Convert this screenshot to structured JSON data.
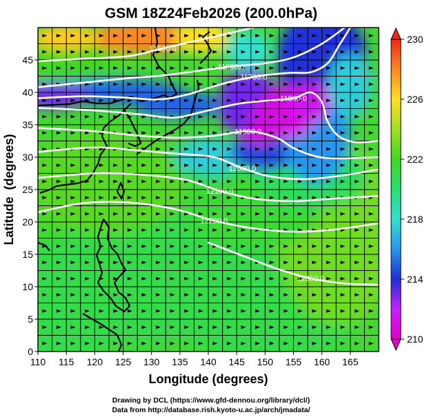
{
  "title": "GSM 18Z24Feb2026 (200.0hPa)",
  "credit_line1": "Drawing by DCL (https://www.gfd-dennou.org/library/dcl/)",
  "credit_line2": "Data from http://database.rish.kyoto-u.ac.jp/arch/jmadata/",
  "chart_data": {
    "type": "heatmap",
    "title": "GSM 18Z24Feb2026 (200.0hPa)",
    "xlabel": "Longitude (degrees)",
    "ylabel": "Latitude  (degrees)",
    "xlim": [
      110,
      170
    ],
    "ylim": [
      0,
      50
    ],
    "x_ticks": [
      110,
      115,
      120,
      125,
      130,
      135,
      140,
      145,
      150,
      155,
      160,
      165
    ],
    "y_ticks": [
      0,
      5,
      10,
      15,
      20,
      25,
      30,
      35,
      40,
      45
    ],
    "grid": true,
    "colorbar": {
      "min": 210,
      "max": 230,
      "tick_values": [
        210,
        214,
        218,
        222,
        226,
        230
      ],
      "stops": [
        {
          "value": 210,
          "color": "#e600c8"
        },
        {
          "value": 212,
          "color": "#c820ff"
        },
        {
          "value": 214,
          "color": "#2030d8"
        },
        {
          "value": 216,
          "color": "#2896f0"
        },
        {
          "value": 218,
          "color": "#30e0d0"
        },
        {
          "value": 220,
          "color": "#28e070"
        },
        {
          "value": 222,
          "color": "#40d820"
        },
        {
          "value": 224,
          "color": "#a0e020"
        },
        {
          "value": 226,
          "color": "#ffe020"
        },
        {
          "value": 228,
          "color": "#ff8820"
        },
        {
          "value": 230,
          "color": "#f02818"
        }
      ]
    },
    "contours": [
      {
        "label": "11500.0",
        "points": [
          [
            110,
            44.8
          ],
          [
            118,
            45.2
          ],
          [
            126,
            45.6
          ],
          [
            132,
            46.8
          ],
          [
            138,
            48.0
          ],
          [
            144,
            49.2
          ],
          [
            148,
            50
          ]
        ]
      },
      {
        "label": "11600.0",
        "points": [
          [
            110,
            40.8
          ],
          [
            118,
            41.5
          ],
          [
            126,
            42.2
          ],
          [
            132,
            42.6
          ],
          [
            138,
            43.3
          ],
          [
            144,
            44.0
          ],
          [
            150,
            44.5
          ],
          [
            155,
            45.4
          ],
          [
            160,
            47.5
          ],
          [
            164,
            50
          ]
        ]
      },
      {
        "label": "11700.0",
        "points": [
          [
            110,
            39.1
          ],
          [
            118,
            39.4
          ],
          [
            125,
            39.2
          ],
          [
            131,
            38.9
          ],
          [
            136,
            39.6
          ],
          [
            142,
            41.2
          ],
          [
            148,
            42.4
          ],
          [
            154,
            43.0
          ],
          [
            158,
            43.1
          ],
          [
            161,
            44.5
          ],
          [
            163,
            47.2
          ],
          [
            165,
            50
          ]
        ]
      },
      {
        "label": "11800.0",
        "points": [
          [
            110,
            37.6
          ],
          [
            120,
            37.2
          ],
          [
            128,
            36.6
          ],
          [
            134,
            36.1
          ],
          [
            139,
            37.0
          ],
          [
            145,
            38.2
          ],
          [
            150,
            38.7
          ],
          [
            155,
            39.1
          ],
          [
            158,
            40.0
          ],
          [
            160,
            38.5
          ],
          [
            161,
            35.5
          ],
          [
            163,
            33.2
          ],
          [
            166,
            32.3
          ],
          [
            170,
            32.5
          ]
        ]
      },
      {
        "label": "11900.0",
        "points": [
          [
            110,
            34.5
          ],
          [
            120,
            34.0
          ],
          [
            128,
            33.3
          ],
          [
            135,
            33.0
          ],
          [
            141,
            33.3
          ],
          [
            147,
            34.0
          ],
          [
            152,
            33.0
          ],
          [
            155,
            31.4
          ],
          [
            159,
            30.1
          ],
          [
            163,
            29.8
          ],
          [
            170,
            30.0
          ]
        ]
      },
      {
        "label": "12000.0",
        "points": [
          [
            110,
            30.8
          ],
          [
            120,
            31.5
          ],
          [
            128,
            31.0
          ],
          [
            135,
            30.5
          ],
          [
            141,
            30.0
          ],
          [
            146,
            28.3
          ],
          [
            151,
            27.0
          ],
          [
            157,
            26.6
          ],
          [
            163,
            27.1
          ],
          [
            170,
            28.1
          ]
        ]
      },
      {
        "label": "12100.0",
        "points": [
          [
            110,
            26.8
          ],
          [
            120,
            27.5
          ],
          [
            128,
            27.3
          ],
          [
            136,
            26.5
          ],
          [
            142,
            24.8
          ],
          [
            148,
            23.6
          ],
          [
            155,
            23.2
          ],
          [
            162,
            23.6
          ],
          [
            170,
            24.0
          ]
        ]
      },
      {
        "label": "12200.0",
        "points": [
          [
            110,
            21.5
          ],
          [
            118,
            22.9
          ],
          [
            126,
            23.0
          ],
          [
            134,
            22.0
          ],
          [
            141,
            20.2
          ],
          [
            148,
            19.0
          ],
          [
            155,
            18.5
          ],
          [
            162,
            18.8
          ],
          [
            170,
            19.8
          ]
        ]
      },
      {
        "label": "12300.0",
        "points": [
          [
            140,
            16.8
          ],
          [
            146,
            14.8
          ],
          [
            152,
            12.8
          ],
          [
            158,
            11.3
          ],
          [
            164,
            10.5
          ],
          [
            170,
            10.3
          ]
        ]
      }
    ]
  }
}
